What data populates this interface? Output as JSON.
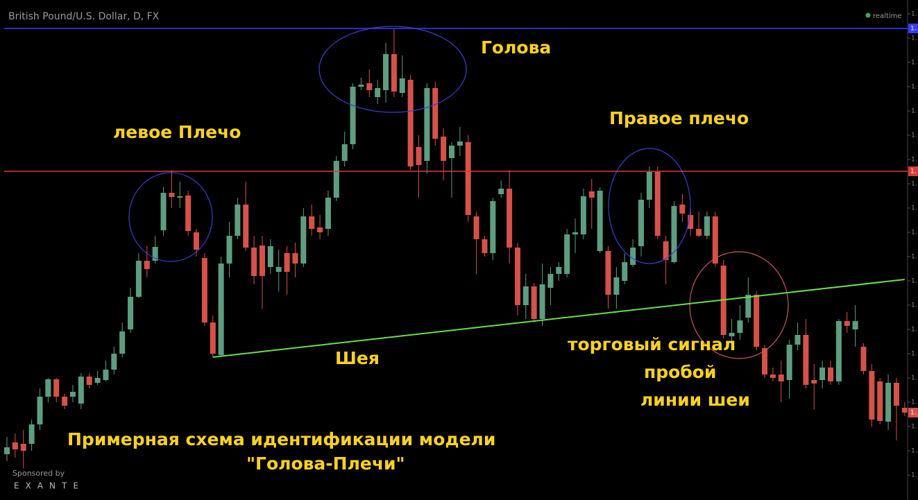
{
  "chart_data": {
    "type": "candlestick",
    "title": "British Pound/U.S. Dollar, D, FX",
    "status": "realtime",
    "sponsor": {
      "caption": "Sponsored by",
      "name": "EXANTE"
    },
    "annotations": {
      "head": "Голова",
      "left_shoulder": "левое Плечо",
      "right_shoulder": "Правое плечо",
      "neck": "Шея",
      "signal": [
        "торговый сигнал",
        "пробой",
        "линии шеи"
      ],
      "caption": [
        "Примерная схема идентификации модели",
        "\"Голова-Плечи\""
      ]
    },
    "up_color": "#5e9e80",
    "down_color": "#d5524a",
    "ylim": [
      1.6479,
      1.72
    ],
    "yticks": [
      {
        "value": 1.718,
        "label": "1."
      },
      {
        "value": 1.7145,
        "label": "1."
      },
      {
        "value": 1.711,
        "label": "1."
      },
      {
        "value": 1.7075,
        "label": "1."
      },
      {
        "value": 1.704,
        "label": "1."
      },
      {
        "value": 1.7005,
        "label": "1."
      },
      {
        "value": 1.697,
        "label": "1."
      },
      {
        "value": 1.6935,
        "label": "1."
      },
      {
        "value": 1.69,
        "label": "1."
      },
      {
        "value": 1.6865,
        "label": "1."
      },
      {
        "value": 1.683,
        "label": "1."
      },
      {
        "value": 1.6795,
        "label": "1."
      },
      {
        "value": 1.676,
        "label": "1."
      },
      {
        "value": 1.6725,
        "label": "1."
      },
      {
        "value": 1.669,
        "label": "1."
      },
      {
        "value": 1.6655,
        "label": "1."
      },
      {
        "value": 1.662,
        "label": "1."
      },
      {
        "value": 1.6585,
        "label": "1."
      },
      {
        "value": 1.655,
        "label": "1."
      },
      {
        "value": 1.6515,
        "label": "1."
      }
    ],
    "levels": [
      {
        "value": 1.7159,
        "color": "#3a3aff",
        "label": "1."
      },
      {
        "value": 1.6953,
        "color": "#e03a3a",
        "label": "1."
      }
    ],
    "last_label": "1.",
    "neckline": {
      "color": "#66e04a",
      "from": 25,
      "to": 109,
      "values": [
        1.6685,
        1.6797
      ]
    },
    "open": [
      1.6545,
      1.6562,
      1.656,
      1.656,
      1.6588,
      1.6628,
      1.6653,
      1.6628,
      1.6628,
      1.6618,
      1.6657,
      1.6648,
      1.6652,
      1.6667,
      1.669,
      1.6725,
      1.6772,
      1.6824,
      1.6824,
      1.6868,
      1.6922,
      1.6915,
      1.6918,
      1.6865,
      1.6828,
      1.6735,
      1.6688,
      1.682,
      1.686,
      1.6905,
      1.6843,
      1.6846,
      1.6815,
      1.6808,
      1.6835,
      1.6835,
      1.682,
      1.6888,
      1.6872,
      1.687,
      1.6915,
      1.6968,
      1.6992,
      1.7075,
      1.708,
      1.706,
      1.707,
      1.7122,
      1.7066,
      1.7085,
      1.6988,
      1.6968,
      1.7073,
      1.7003,
      1.6972,
      1.699,
      1.6995,
      1.6888,
      1.6855,
      1.6835,
      1.692,
      1.6928,
      1.6843,
      1.676,
      1.6787,
      1.674,
      1.6785,
      1.6805,
      1.6805,
      1.6862,
      1.6862,
      1.6924,
      1.6838,
      1.6838,
      1.6775,
      1.6795,
      1.6818,
      1.6845,
      1.6912,
      1.6952,
      1.6852,
      1.6822,
      1.6905,
      1.689,
      1.687,
      1.686,
      1.6888,
      1.6817,
      1.6715,
      1.672,
      1.6742,
      1.6775,
      1.6698,
      1.666,
      1.666,
      1.6652,
      1.6703,
      1.6717,
      1.6652,
      1.6652,
      1.667,
      1.665,
      1.6737,
      1.6725,
      1.67,
      1.6665,
      1.665,
      1.6592,
      1.6648,
      1.6612
    ],
    "high": [
      1.657,
      1.6575,
      1.658,
      1.6595,
      1.664,
      1.6655,
      1.6655,
      1.6632,
      1.6645,
      1.6662,
      1.6662,
      1.6665,
      1.668,
      1.67,
      1.6735,
      1.6785,
      1.6835,
      1.6845,
      1.686,
      1.693,
      1.6955,
      1.6938,
      1.6925,
      1.687,
      1.6835,
      1.6745,
      1.683,
      1.688,
      1.6915,
      1.6938,
      1.686,
      1.686,
      1.6855,
      1.684,
      1.6845,
      1.685,
      1.69,
      1.6905,
      1.689,
      1.6925,
      1.6975,
      1.701,
      1.708,
      1.7088,
      1.71,
      1.7085,
      1.7138,
      1.7158,
      1.712,
      1.7092,
      1.7005,
      1.708,
      1.7082,
      1.7015,
      1.6995,
      1.7017,
      1.7005,
      1.6895,
      1.686,
      1.6915,
      1.694,
      1.6955,
      1.685,
      1.6805,
      1.6792,
      1.682,
      1.6815,
      1.6822,
      1.687,
      1.6885,
      1.6928,
      1.6942,
      1.693,
      1.6845,
      1.6815,
      1.6835,
      1.6855,
      1.6922,
      1.696,
      1.696,
      1.686,
      1.691,
      1.692,
      1.69,
      1.6895,
      1.6895,
      1.6895,
      1.6825,
      1.674,
      1.676,
      1.68,
      1.678,
      1.6702,
      1.667,
      1.668,
      1.671,
      1.6735,
      1.674,
      1.6675,
      1.668,
      1.668,
      1.674,
      1.675,
      1.676,
      1.6705,
      1.6675,
      1.6655,
      1.666,
      1.6655,
      1.662
    ],
    "low": [
      1.6535,
      1.654,
      1.6525,
      1.655,
      1.658,
      1.662,
      1.662,
      1.661,
      1.662,
      1.661,
      1.664,
      1.6645,
      1.665,
      1.666,
      1.6685,
      1.672,
      1.677,
      1.68,
      1.682,
      1.686,
      1.69,
      1.69,
      1.686,
      1.683,
      1.673,
      1.6685,
      1.6685,
      1.68,
      1.6855,
      1.6838,
      1.679,
      1.6755,
      1.6805,
      1.678,
      1.6775,
      1.68,
      1.6815,
      1.686,
      1.6855,
      1.686,
      1.691,
      1.696,
      1.6985,
      1.707,
      1.706,
      1.705,
      1.7052,
      1.706,
      1.706,
      1.6955,
      1.6915,
      1.695,
      1.699,
      1.694,
      1.6915,
      1.6975,
      1.688,
      1.6805,
      1.683,
      1.6825,
      1.6915,
      1.682,
      1.6745,
      1.674,
      1.6735,
      1.673,
      1.676,
      1.6795,
      1.68,
      1.6835,
      1.6855,
      1.687,
      1.6835,
      1.6755,
      1.6755,
      1.679,
      1.6815,
      1.683,
      1.69,
      1.6855,
      1.679,
      1.682,
      1.688,
      1.686,
      1.6858,
      1.6855,
      1.6815,
      1.6712,
      1.67,
      1.671,
      1.6735,
      1.6695,
      1.6655,
      1.665,
      1.662,
      1.6625,
      1.6695,
      1.664,
      1.661,
      1.664,
      1.6645,
      1.6645,
      1.672,
      1.67,
      1.666,
      1.6585,
      1.6588,
      1.658,
      1.6565,
      1.66
    ],
    "close": [
      1.6555,
      1.6552,
      1.655,
      1.6588,
      1.6628,
      1.6653,
      1.6628,
      1.6615,
      1.6635,
      1.6657,
      1.6645,
      1.6655,
      1.6667,
      1.669,
      1.6722,
      1.6772,
      1.6824,
      1.6812,
      1.6844,
      1.6922,
      1.6916,
      1.6917,
      1.6867,
      1.684,
      1.6735,
      1.669,
      1.682,
      1.686,
      1.6905,
      1.6843,
      1.6802,
      1.6802,
      1.6845,
      1.6815,
      1.6808,
      1.682,
      1.6888,
      1.687,
      1.6865,
      1.6915,
      1.6968,
      1.6992,
      1.7075,
      1.7078,
      1.707,
      1.7073,
      1.7122,
      1.7068,
      1.7087,
      1.696,
      1.6962,
      1.7073,
      1.7,
      1.6968,
      1.699,
      1.6996,
      1.689,
      1.6855,
      1.6835,
      1.691,
      1.6928,
      1.6843,
      1.676,
      1.6787,
      1.674,
      1.679,
      1.6805,
      1.6815,
      1.6862,
      1.6865,
      1.6917,
      1.6915,
      1.6925,
      1.6775,
      1.68,
      1.6822,
      1.6843,
      1.6912,
      1.6952,
      1.686,
      1.6825,
      1.6903,
      1.6892,
      1.687,
      1.686,
      1.6888,
      1.682,
      1.6717,
      1.672,
      1.6738,
      1.6775,
      1.67,
      1.666,
      1.6655,
      1.665,
      1.6703,
      1.6717,
      1.6645,
      1.6647,
      1.667,
      1.665,
      1.6737,
      1.673,
      1.6737,
      1.6665,
      1.6595,
      1.6593,
      1.6648,
      1.6615,
      1.6605
    ]
  }
}
